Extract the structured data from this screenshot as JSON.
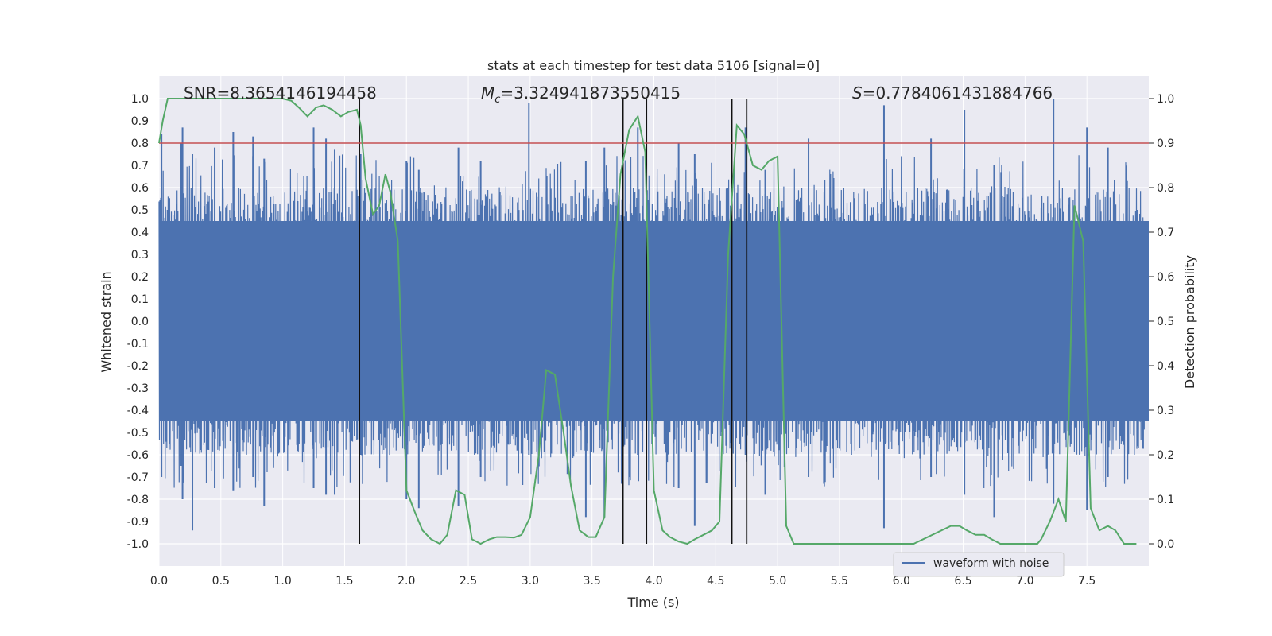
{
  "chart_data": {
    "type": "line",
    "title": "stats at each timestep for test data 5106 [signal=0]",
    "xlabel": "Time (s)",
    "ylabel_left": "Whitened strain",
    "ylabel_right": "Detection probability",
    "xlim": [
      0.0,
      8.0
    ],
    "ylim_left": [
      -1.1,
      1.1
    ],
    "ylim_right": [
      -0.05,
      1.05
    ],
    "x_ticks": [
      "0.0",
      "0.5",
      "1.0",
      "1.5",
      "2.0",
      "2.5",
      "3.0",
      "3.5",
      "4.0",
      "4.5",
      "5.0",
      "5.5",
      "6.0",
      "6.5",
      "7.0",
      "7.5"
    ],
    "y_left_ticks": [
      "1.0",
      "0.9",
      "0.8",
      "0.7",
      "0.6",
      "0.5",
      "0.4",
      "0.3",
      "0.2",
      "0.1",
      "0.0",
      "-0.1",
      "-0.2",
      "-0.3",
      "-0.4",
      "-0.5",
      "-0.6",
      "-0.7",
      "-0.8",
      "-0.9",
      "-1.0"
    ],
    "y_right_ticks": [
      "1.0",
      "0.9",
      "0.8",
      "0.7",
      "0.6",
      "0.5",
      "0.4",
      "0.3",
      "0.2",
      "0.1",
      "0.0"
    ],
    "grid": true,
    "legend_position": "lower-right",
    "annotations": {
      "snr": "SNR=8.3654146194458",
      "mc_symbol": "M",
      "mc_sub": "c",
      "mc_value": "=3.324941873550415",
      "s_symbol": "S",
      "s_value": "=0.7784061431884766"
    },
    "threshold": {
      "value": 0.9,
      "axis": "right",
      "color": "#c44e52"
    },
    "vertical_lines_x": [
      1.62,
      3.75,
      3.94,
      4.63,
      4.75
    ],
    "series": [
      {
        "name": "waveform with noise",
        "axis": "left",
        "color": "#4c72b0",
        "envelope_peaks": [
          {
            "x": 0.02,
            "top": 0.84,
            "bottom": -0.7
          },
          {
            "x": 0.18,
            "top": 0.8,
            "bottom": -0.65
          },
          {
            "x": 0.19,
            "top": 0.87,
            "bottom": -0.8
          },
          {
            "x": 0.27,
            "top": 0.75,
            "bottom": -0.94
          },
          {
            "x": 0.45,
            "top": 0.78,
            "bottom": -0.75
          },
          {
            "x": 0.6,
            "top": 0.85,
            "bottom": -0.76
          },
          {
            "x": 0.76,
            "top": 0.83,
            "bottom": -0.7
          },
          {
            "x": 0.85,
            "top": 0.73,
            "bottom": -0.83
          },
          {
            "x": 1.25,
            "top": 0.87,
            "bottom": -0.75
          },
          {
            "x": 1.35,
            "top": 0.82,
            "bottom": -0.78
          },
          {
            "x": 1.42,
            "top": 0.77,
            "bottom": -0.78
          },
          {
            "x": 1.63,
            "top": 0.75,
            "bottom": -0.6
          },
          {
            "x": 2.0,
            "top": 0.72,
            "bottom": -0.8
          },
          {
            "x": 2.1,
            "top": 0.68,
            "bottom": -0.84
          },
          {
            "x": 2.42,
            "top": 0.78,
            "bottom": -0.83
          },
          {
            "x": 2.6,
            "top": 0.72,
            "bottom": -0.7
          },
          {
            "x": 2.99,
            "top": 0.98,
            "bottom": -0.6
          },
          {
            "x": 3.45,
            "top": 0.72,
            "bottom": -0.88
          },
          {
            "x": 3.6,
            "top": 0.78,
            "bottom": -0.88
          },
          {
            "x": 3.87,
            "top": 0.87,
            "bottom": -0.6
          },
          {
            "x": 4.2,
            "top": 0.8,
            "bottom": -0.75
          },
          {
            "x": 4.33,
            "top": 0.75,
            "bottom": -0.92
          },
          {
            "x": 4.74,
            "top": 0.87,
            "bottom": -0.6
          },
          {
            "x": 4.9,
            "top": 0.68,
            "bottom": -0.78
          },
          {
            "x": 5.25,
            "top": 0.82,
            "bottom": -0.7
          },
          {
            "x": 5.86,
            "top": 0.97,
            "bottom": -0.93
          },
          {
            "x": 6.24,
            "top": 0.82,
            "bottom": -0.7
          },
          {
            "x": 6.51,
            "top": 0.95,
            "bottom": -0.78
          },
          {
            "x": 6.75,
            "top": 0.7,
            "bottom": -0.88
          },
          {
            "x": 7.23,
            "top": 1.0,
            "bottom": -0.82
          },
          {
            "x": 7.5,
            "top": 0.87,
            "bottom": -0.85
          },
          {
            "x": 7.67,
            "top": 0.78,
            "bottom": -0.7
          }
        ]
      },
      {
        "name": "",
        "axis": "right",
        "color": "#55a868",
        "x": [
          0.0,
          0.03,
          0.07,
          0.2,
          0.4,
          0.6,
          0.8,
          1.0,
          1.07,
          1.13,
          1.2,
          1.27,
          1.33,
          1.4,
          1.47,
          1.53,
          1.6,
          1.63,
          1.67,
          1.73,
          1.78,
          1.83,
          1.87,
          1.93,
          2.0,
          2.07,
          2.13,
          2.2,
          2.27,
          2.33,
          2.4,
          2.47,
          2.53,
          2.6,
          2.67,
          2.73,
          2.8,
          2.87,
          2.93,
          3.0,
          3.07,
          3.13,
          3.2,
          3.27,
          3.33,
          3.4,
          3.47,
          3.53,
          3.6,
          3.67,
          3.73,
          3.8,
          3.87,
          3.93,
          4.0,
          4.07,
          4.13,
          4.2,
          4.27,
          4.33,
          4.4,
          4.47,
          4.53,
          4.6,
          4.67,
          4.73,
          4.8,
          4.87,
          4.93,
          5.0,
          5.07,
          5.13,
          5.5,
          5.8,
          6.1,
          6.4,
          6.47,
          6.53,
          6.6,
          6.67,
          6.73,
          6.8,
          7.1,
          7.13,
          7.2,
          7.27,
          7.33,
          7.4,
          7.47,
          7.53,
          7.6,
          7.67,
          7.73,
          7.8,
          7.9
        ],
        "values": [
          0.9,
          0.95,
          1.0,
          1.0,
          1.0,
          1.0,
          1.0,
          1.0,
          0.995,
          0.98,
          0.96,
          0.98,
          0.985,
          0.975,
          0.96,
          0.97,
          0.975,
          0.94,
          0.82,
          0.74,
          0.76,
          0.83,
          0.79,
          0.68,
          0.12,
          0.07,
          0.03,
          0.01,
          0.0,
          0.02,
          0.12,
          0.11,
          0.01,
          0.0,
          0.01,
          0.015,
          0.015,
          0.014,
          0.02,
          0.06,
          0.2,
          0.39,
          0.38,
          0.25,
          0.13,
          0.03,
          0.015,
          0.015,
          0.06,
          0.6,
          0.83,
          0.93,
          0.96,
          0.88,
          0.12,
          0.03,
          0.015,
          0.005,
          0.0,
          0.01,
          0.02,
          0.03,
          0.05,
          0.65,
          0.94,
          0.92,
          0.85,
          0.84,
          0.86,
          0.87,
          0.04,
          0.0,
          0.0,
          0.0,
          0.0,
          0.04,
          0.04,
          0.03,
          0.02,
          0.02,
          0.01,
          0.0,
          0.0,
          0.01,
          0.05,
          0.1,
          0.05,
          0.76,
          0.68,
          0.08,
          0.03,
          0.04,
          0.03,
          0.0,
          0.0
        ]
      }
    ]
  }
}
